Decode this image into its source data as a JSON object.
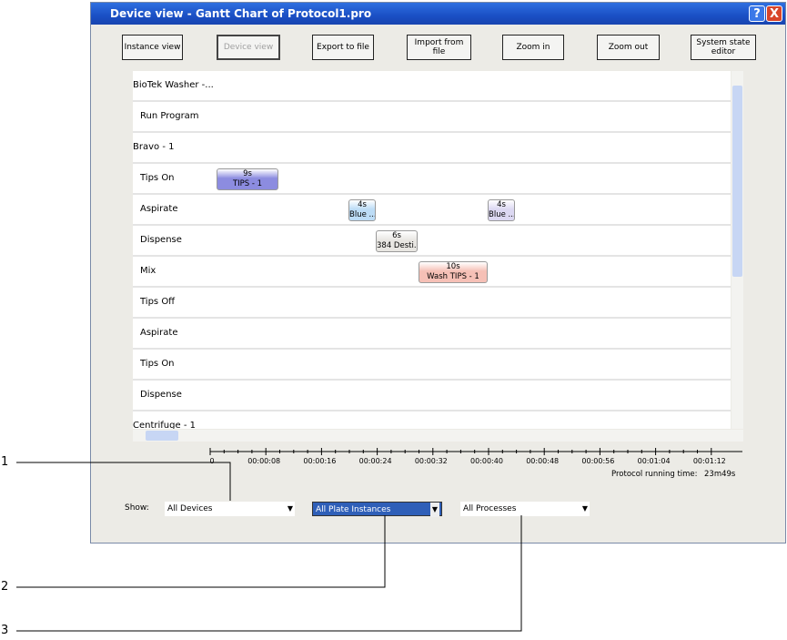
{
  "window": {
    "title": "Device view - Gantt Chart of Protocol1.pro",
    "title_buttons": [
      "?",
      "X"
    ]
  },
  "toolbar": [
    "Instance view",
    "Device view",
    "Export to file",
    "Import from file",
    "Zoom in",
    "Zoom out",
    "System state editor"
  ],
  "rows": [
    {
      "label": "BioTek Washer -...",
      "level": 0
    },
    {
      "label": "Run Program",
      "level": 1
    },
    {
      "label": "Bravo - 1",
      "level": 0
    },
    {
      "label": "Tips On",
      "level": 1,
      "tasks": [
        {
          "duration": "9s",
          "name": "TIPS - 1",
          "color": "#8c8ce0"
        }
      ]
    },
    {
      "label": "Aspirate",
      "level": 1,
      "tasks": [
        {
          "duration": "4s",
          "name": "Blue ...",
          "color": "#bcdcf6"
        },
        {
          "duration": "4s",
          "name": "Blue ...",
          "color": "#dcd8f2"
        }
      ]
    },
    {
      "label": "Dispense",
      "level": 1,
      "tasks": [
        {
          "duration": "6s",
          "name": "384 Desti...",
          "color": "#e8e6e2"
        }
      ]
    },
    {
      "label": "Mix",
      "level": 1,
      "tasks": [
        {
          "duration": "10s",
          "name": "Wash TIPS - 1",
          "color": "#f6c0b6"
        }
      ]
    },
    {
      "label": "Tips Off",
      "level": 1
    },
    {
      "label": "Aspirate",
      "level": 1
    },
    {
      "label": "Tips On",
      "level": 1
    },
    {
      "label": "Dispense",
      "level": 1
    },
    {
      "label": "Centrifuge - 1",
      "level": 0
    }
  ],
  "timeline": {
    "ticks": [
      "0",
      "00:00:08",
      "00:00:16",
      "00:00:24",
      "00:00:32",
      "00:00:40",
      "00:00:48",
      "00:00:56",
      "00:01:04",
      "00:01:12"
    ],
    "running_time_label": "Protocol running time:",
    "running_time": "23m49s"
  },
  "filters": {
    "label": "Show:",
    "devices": "All Devices",
    "plate_instances": "All Plate Instances",
    "processes": "All Processes"
  },
  "callouts": [
    "1",
    "2",
    "3"
  ]
}
